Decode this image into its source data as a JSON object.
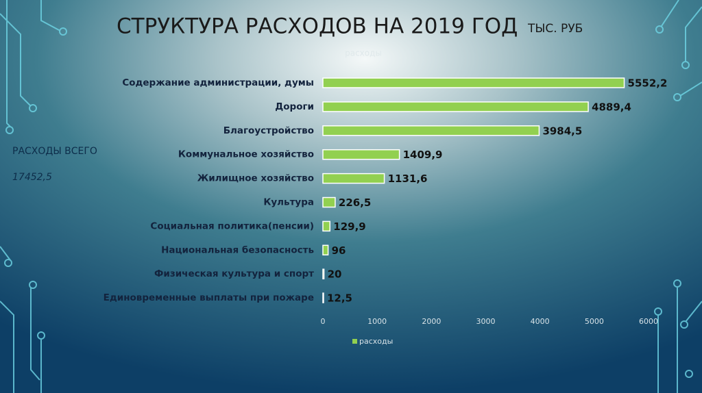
{
  "title": "СТРУКТУРА РАСХОДОВ НА 2019 ГОД",
  "subtitle": "ТЫС. РУБ",
  "annotations": [
    "РАСХОДЫ ВСЕГО",
    "17452,5"
  ],
  "chart_data": {
    "type": "bar",
    "orientation": "horizontal",
    "title": "расходы",
    "categories": [
      "Содержание администрации, думы",
      "Дороги",
      "Благоустройство",
      "Коммунальное хозяйство",
      "Жилищное хозяйство",
      "Культура",
      "Социальная политика(пенсии)",
      "Национальная безопасность",
      "Физическая культура и спорт",
      "Единовременные выплаты при пожаре"
    ],
    "series": [
      {
        "name": "расходы",
        "color": "#92d050",
        "values": [
          5552.2,
          4889.4,
          3984.5,
          1409.9,
          1131.6,
          226.5,
          129.9,
          96,
          20,
          12.5
        ],
        "value_labels": [
          "5552,2",
          "4889,4",
          "3984,5",
          "1409,9",
          "1131,6",
          "226,5",
          "129,9",
          "96",
          "20",
          "12,5"
        ]
      }
    ],
    "xlim": [
      0,
      6000
    ],
    "xticks": [
      0,
      1000,
      2000,
      3000,
      4000,
      5000,
      6000
    ],
    "grid": false,
    "legend": "bottom"
  }
}
